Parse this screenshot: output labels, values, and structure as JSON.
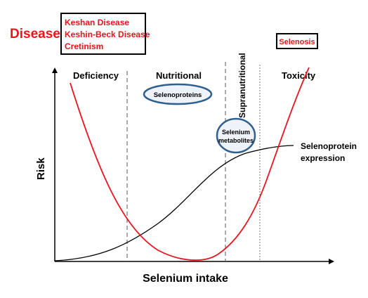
{
  "disease": {
    "label": "Disease",
    "deficiency_diseases": [
      "Keshan Disease",
      "Keshin-Beck Disease",
      "Cretinism"
    ],
    "toxicity_disease": "Selenosis"
  },
  "zones": {
    "deficiency": "Deficiency",
    "nutritional": "Nutritional",
    "supranutritional": "Supranutritional",
    "toxicity": "Toxicity"
  },
  "bubbles": {
    "selenoproteins": "Selenoproteins",
    "selenium_metabolites": [
      "Selenium",
      "metabolites"
    ]
  },
  "curves": {
    "expression_label": [
      "Selenoprotein",
      "expression"
    ]
  },
  "axes": {
    "y_label": "Risk",
    "x_label": "Selenium intake"
  },
  "colors": {
    "risk_curve": "#e8141e",
    "expression_curve": "#000000",
    "disease_text": "#e8141e",
    "bubble_fill": "#eef3fa",
    "bubble_stroke": "#2f5f8f",
    "divider": "#555555"
  }
}
